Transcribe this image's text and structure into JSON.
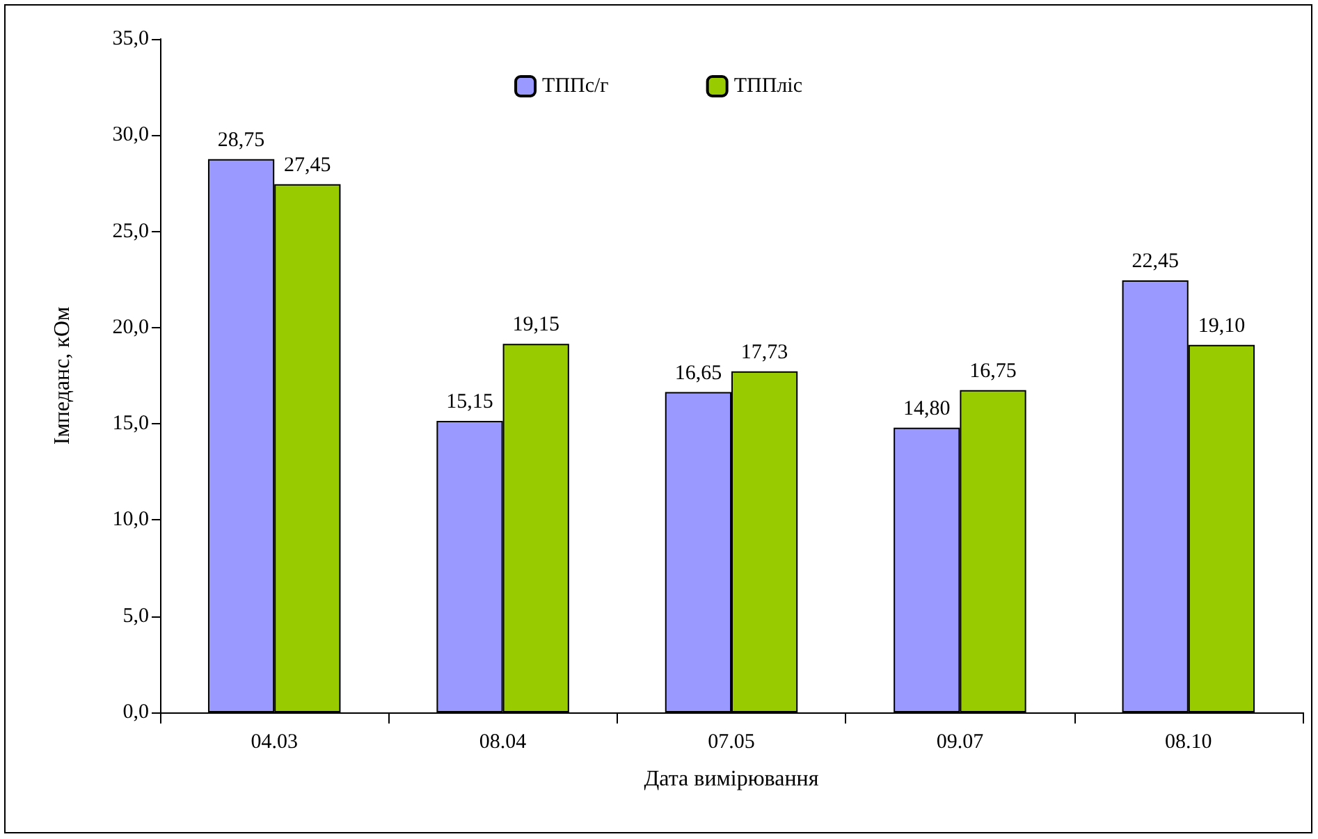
{
  "chart_data": {
    "type": "bar",
    "xlabel": "Дата вимірювання",
    "ylabel": "Імпеданс, кОм",
    "categories": [
      "04.03",
      "08.04",
      "07.05",
      "09.07",
      "08.10"
    ],
    "series": [
      {
        "name": "ТППс/г",
        "color": "#9999ff",
        "values": [
          28.75,
          15.15,
          16.65,
          14.8,
          22.45
        ],
        "value_labels": [
          "28,75",
          "15,15",
          "16,65",
          "14,80",
          "22,45"
        ]
      },
      {
        "name": "ТППліс",
        "color": "#99cc00",
        "values": [
          27.45,
          19.15,
          17.73,
          16.75,
          19.1
        ],
        "value_labels": [
          "27,45",
          "19,15",
          "17,73",
          "16,75",
          "19,10"
        ]
      }
    ],
    "ylim": [
      0,
      35
    ],
    "yticks": [
      {
        "value": 0,
        "label": "0,0"
      },
      {
        "value": 5,
        "label": "5,0"
      },
      {
        "value": 10,
        "label": "10,0"
      },
      {
        "value": 15,
        "label": "15,0"
      },
      {
        "value": 20,
        "label": "20,0"
      },
      {
        "value": 25,
        "label": "25,0"
      },
      {
        "value": 30,
        "label": "30,0"
      },
      {
        "value": 35,
        "label": "35,0"
      }
    ],
    "grid": false,
    "legend": "top"
  }
}
